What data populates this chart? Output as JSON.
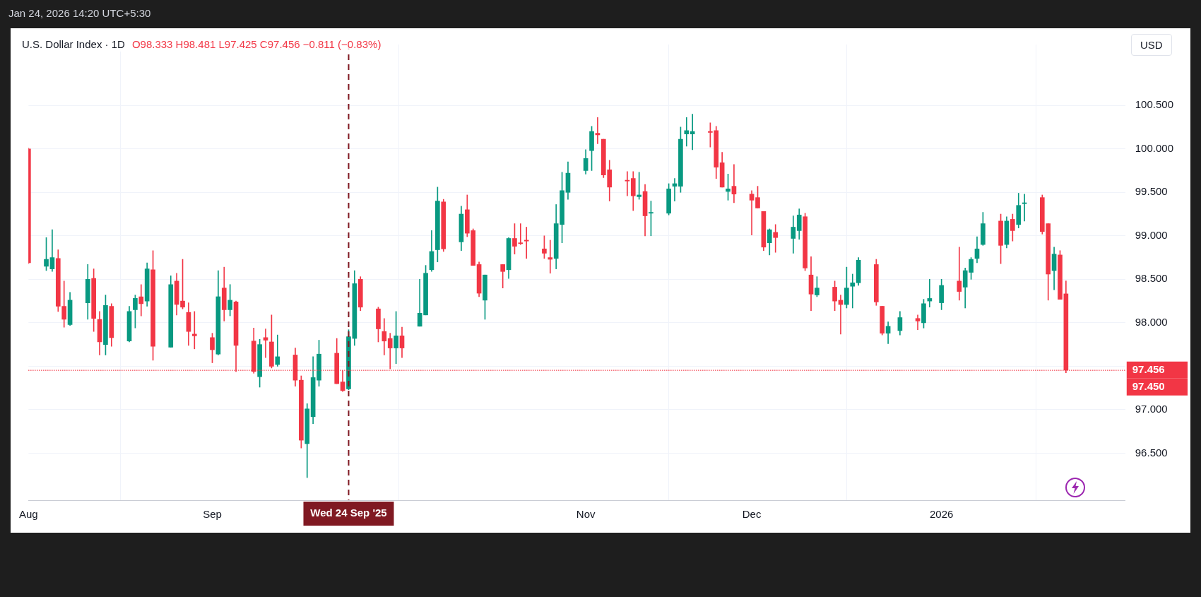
{
  "chart_data": {
    "type": "candlestick",
    "title": "U.S. Dollar Index · 1D",
    "subtitle": "O98.333 H98.481 L97.425 C97.456 −0.811 (−0.83%)",
    "annotations": [
      "Jan 24, 2026 14:20 UTC+5:30",
      "USD"
    ],
    "x": [
      "2025-08-01",
      "2025-08-04",
      "2025-08-05",
      "2025-08-06",
      "2025-08-07",
      "2025-08-08",
      "2025-08-11",
      "2025-08-12",
      "2025-08-13",
      "2025-08-14",
      "2025-08-15",
      "2025-08-18",
      "2025-08-19",
      "2025-08-20",
      "2025-08-21",
      "2025-08-22",
      "2025-08-25",
      "2025-08-26",
      "2025-08-27",
      "2025-08-28",
      "2025-08-29",
      "2025-09-01",
      "2025-09-02",
      "2025-09-03",
      "2025-09-04",
      "2025-09-05",
      "2025-09-08",
      "2025-09-09",
      "2025-09-10",
      "2025-09-11",
      "2025-09-12",
      "2025-09-15",
      "2025-09-16",
      "2025-09-17",
      "2025-09-18",
      "2025-09-19",
      "2025-09-22",
      "2025-09-23",
      "2025-09-24",
      "2025-09-25",
      "2025-09-26",
      "2025-09-29",
      "2025-09-30",
      "2025-10-01",
      "2025-10-02",
      "2025-10-03",
      "2025-10-06",
      "2025-10-07",
      "2025-10-08",
      "2025-10-09",
      "2025-10-10",
      "2025-10-13",
      "2025-10-14",
      "2025-10-15",
      "2025-10-16",
      "2025-10-17",
      "2025-10-20",
      "2025-10-21",
      "2025-10-22",
      "2025-10-23",
      "2025-10-24",
      "2025-10-27",
      "2025-10-28",
      "2025-10-29",
      "2025-10-30",
      "2025-10-31",
      "2025-11-03",
      "2025-11-04",
      "2025-11-05",
      "2025-11-06",
      "2025-11-07",
      "2025-11-10",
      "2025-11-11",
      "2025-11-12",
      "2025-11-13",
      "2025-11-14",
      "2025-11-17",
      "2025-11-18",
      "2025-11-19",
      "2025-11-20",
      "2025-11-21",
      "2025-11-24",
      "2025-11-25",
      "2025-11-26",
      "2025-11-27",
      "2025-11-28",
      "2025-12-01",
      "2025-12-02",
      "2025-12-03",
      "2025-12-04",
      "2025-12-05",
      "2025-12-08",
      "2025-12-09",
      "2025-12-10",
      "2025-12-11",
      "2025-12-12",
      "2025-12-15",
      "2025-12-16",
      "2025-12-17",
      "2025-12-18",
      "2025-12-19",
      "2025-12-22",
      "2025-12-23",
      "2025-12-24",
      "2025-12-26",
      "2025-12-29",
      "2025-12-30",
      "2025-12-31",
      "2026-01-02",
      "2026-01-05",
      "2026-01-06",
      "2026-01-07",
      "2026-01-08",
      "2026-01-09",
      "2026-01-12",
      "2026-01-13",
      "2026-01-14",
      "2026-01-15",
      "2026-01-16",
      "2026-01-19",
      "2026-01-20",
      "2026-01-21",
      "2026-01-22",
      "2026-01-23"
    ],
    "ohlc": [
      [
        100.0,
        100.01,
        98.68,
        98.69
      ],
      [
        98.65,
        98.98,
        98.6,
        98.73
      ],
      [
        98.62,
        99.07,
        98.59,
        98.75
      ],
      [
        98.74,
        98.84,
        98.13,
        98.19
      ],
      [
        98.19,
        98.48,
        97.95,
        98.04
      ],
      [
        97.98,
        98.35,
        97.97,
        98.26
      ],
      [
        98.23,
        98.67,
        98.04,
        98.5
      ],
      [
        98.51,
        98.62,
        97.9,
        98.05
      ],
      [
        98.04,
        98.13,
        97.63,
        97.78
      ],
      [
        97.75,
        98.32,
        97.63,
        98.2
      ],
      [
        98.19,
        98.22,
        97.73,
        97.83
      ],
      [
        97.79,
        98.19,
        97.78,
        98.13
      ],
      [
        98.15,
        98.32,
        97.94,
        98.28
      ],
      [
        98.3,
        98.44,
        98.08,
        98.22
      ],
      [
        98.25,
        98.69,
        98.19,
        98.62
      ],
      [
        98.61,
        98.83,
        97.57,
        97.73
      ],
      [
        97.72,
        98.54,
        97.72,
        98.44
      ],
      [
        98.48,
        98.57,
        98.09,
        98.21
      ],
      [
        98.25,
        98.73,
        98.16,
        98.18
      ],
      [
        98.12,
        98.23,
        97.74,
        97.9
      ],
      [
        97.87,
        98.13,
        97.7,
        97.85
      ],
      [
        97.83,
        97.88,
        97.54,
        97.69
      ],
      [
        97.64,
        98.6,
        97.63,
        98.3
      ],
      [
        98.4,
        98.64,
        98.02,
        98.15
      ],
      [
        98.15,
        98.44,
        98.08,
        98.26
      ],
      [
        98.24,
        98.25,
        97.44,
        97.74
      ],
      [
        97.79,
        97.94,
        97.42,
        97.44
      ],
      [
        97.38,
        97.81,
        97.26,
        97.75
      ],
      [
        97.83,
        97.93,
        97.6,
        97.8
      ],
      [
        97.78,
        98.09,
        97.48,
        97.5
      ],
      [
        97.52,
        97.86,
        97.5,
        97.61
      ],
      [
        97.63,
        97.71,
        97.27,
        97.34
      ],
      [
        97.34,
        97.39,
        96.56,
        96.65
      ],
      [
        96.61,
        97.07,
        96.22,
        97.01
      ],
      [
        96.92,
        97.61,
        96.84,
        97.37
      ],
      [
        97.34,
        97.8,
        97.27,
        97.64
      ],
      [
        97.65,
        97.82,
        97.3,
        97.3
      ],
      [
        97.32,
        97.45,
        97.21,
        97.22
      ],
      [
        97.24,
        97.92,
        97.23,
        97.84
      ],
      [
        97.82,
        98.6,
        97.74,
        98.45
      ],
      [
        98.5,
        98.53,
        98.14,
        98.18
      ],
      [
        98.16,
        98.18,
        97.78,
        97.93
      ],
      [
        97.9,
        98.05,
        97.63,
        97.79
      ],
      [
        97.82,
        97.88,
        97.47,
        97.71
      ],
      [
        97.71,
        98.13,
        97.53,
        97.85
      ],
      [
        97.85,
        97.95,
        97.6,
        97.71
      ],
      [
        97.96,
        98.5,
        97.96,
        98.11
      ],
      [
        98.09,
        98.66,
        98.09,
        98.57
      ],
      [
        98.61,
        99.06,
        98.59,
        98.82
      ],
      [
        98.84,
        99.56,
        98.7,
        99.4
      ],
      [
        99.39,
        99.42,
        98.82,
        98.85
      ],
      [
        98.93,
        99.34,
        98.83,
        99.25
      ],
      [
        99.3,
        99.47,
        98.99,
        99.03
      ],
      [
        99.06,
        99.08,
        98.66,
        98.66
      ],
      [
        98.67,
        98.7,
        98.3,
        98.34
      ],
      [
        98.26,
        98.55,
        98.04,
        98.55
      ],
      [
        98.67,
        98.67,
        98.4,
        98.59
      ],
      [
        98.61,
        98.98,
        98.51,
        98.97
      ],
      [
        98.97,
        99.14,
        98.79,
        98.88
      ],
      [
        98.92,
        99.14,
        98.9,
        98.91
      ],
      [
        98.95,
        99.1,
        98.74,
        98.94
      ],
      [
        98.85,
        99.0,
        98.74,
        98.8
      ],
      [
        98.75,
        98.95,
        98.57,
        98.73
      ],
      [
        98.74,
        99.36,
        98.62,
        99.14
      ],
      [
        99.13,
        99.73,
        98.92,
        99.52
      ],
      [
        99.5,
        99.85,
        99.42,
        99.72
      ],
      [
        99.75,
        99.99,
        99.71,
        99.89
      ],
      [
        99.98,
        100.26,
        99.75,
        100.2
      ],
      [
        100.18,
        100.36,
        100.06,
        100.16
      ],
      [
        100.11,
        100.11,
        99.67,
        99.7
      ],
      [
        99.76,
        99.87,
        99.4,
        99.56
      ],
      [
        99.64,
        99.74,
        99.46,
        99.63
      ],
      [
        99.66,
        99.74,
        99.29,
        99.46
      ],
      [
        99.45,
        99.73,
        99.42,
        99.47
      ],
      [
        99.51,
        99.59,
        99.0,
        99.23
      ],
      [
        99.26,
        99.4,
        99.0,
        99.27
      ],
      [
        99.26,
        99.6,
        99.24,
        99.54
      ],
      [
        99.57,
        99.66,
        99.4,
        99.6
      ],
      [
        99.57,
        100.25,
        99.5,
        100.11
      ],
      [
        100.17,
        100.36,
        100.03,
        100.21
      ],
      [
        100.17,
        100.4,
        99.99,
        100.2
      ],
      [
        100.2,
        100.3,
        100.02,
        100.19
      ],
      [
        100.21,
        100.26,
        99.66,
        99.79
      ],
      [
        99.84,
        99.96,
        99.56,
        99.56
      ],
      [
        99.51,
        99.71,
        99.41,
        99.54
      ],
      [
        99.57,
        99.82,
        99.38,
        99.48
      ],
      [
        99.48,
        99.52,
        99.01,
        99.41
      ],
      [
        99.44,
        99.57,
        99.32,
        99.32
      ],
      [
        99.28,
        99.28,
        98.83,
        98.87
      ],
      [
        98.92,
        99.08,
        98.78,
        99.07
      ],
      [
        99.04,
        99.13,
        98.81,
        98.98
      ],
      [
        98.97,
        99.23,
        98.8,
        99.1
      ],
      [
        99.06,
        99.31,
        98.96,
        99.24
      ],
      [
        99.22,
        99.26,
        98.6,
        98.63
      ],
      [
        98.55,
        98.76,
        98.14,
        98.33
      ],
      [
        98.32,
        98.53,
        98.3,
        98.4
      ],
      [
        98.41,
        98.48,
        98.14,
        98.25
      ],
      [
        98.26,
        98.32,
        97.87,
        98.21
      ],
      [
        98.21,
        98.64,
        98.17,
        98.4
      ],
      [
        98.42,
        98.56,
        98.17,
        98.46
      ],
      [
        98.46,
        98.75,
        98.43,
        98.72
      ],
      [
        98.67,
        98.73,
        98.2,
        98.24
      ],
      [
        98.19,
        98.19,
        97.86,
        97.88
      ],
      [
        97.88,
        98.01,
        97.76,
        97.96
      ],
      [
        97.91,
        98.13,
        97.86,
        98.06
      ],
      [
        98.05,
        98.09,
        97.92,
        98.02
      ],
      [
        98.0,
        98.27,
        97.94,
        98.22
      ],
      [
        98.25,
        98.5,
        98.18,
        98.28
      ],
      [
        98.23,
        98.5,
        98.15,
        98.43
      ],
      [
        98.48,
        98.87,
        98.26,
        98.36
      ],
      [
        98.41,
        98.63,
        98.17,
        98.6
      ],
      [
        98.58,
        98.75,
        98.5,
        98.73
      ],
      [
        98.74,
        98.99,
        98.69,
        98.85
      ],
      [
        98.9,
        99.27,
        98.89,
        99.14
      ],
      [
        99.17,
        99.25,
        98.68,
        98.89
      ],
      [
        98.9,
        99.22,
        98.86,
        99.17
      ],
      [
        99.19,
        99.25,
        98.94,
        99.06
      ],
      [
        99.13,
        99.49,
        99.09,
        99.35
      ],
      [
        99.37,
        99.48,
        99.17,
        99.38
      ],
      [
        99.44,
        99.47,
        99.02,
        99.05
      ],
      [
        99.14,
        99.14,
        98.26,
        98.56
      ],
      [
        98.6,
        98.87,
        98.38,
        98.79
      ],
      [
        98.78,
        98.83,
        98.27,
        98.27
      ],
      [
        98.333,
        98.481,
        97.425,
        97.456
      ]
    ],
    "colors": [
      "#f23645",
      "#089981",
      "#089981",
      "#f23645",
      "#f23645",
      "#089981",
      "#089981",
      "#f23645",
      "#f23645",
      "#089981",
      "#f23645",
      "#089981",
      "#089981",
      "#f23645",
      "#089981",
      "#f23645",
      "#089981",
      "#f23645",
      "#f23645",
      "#f23645",
      "#f23645",
      "#f23645",
      "#089981",
      "#f23645",
      "#089981",
      "#f23645",
      "#f23645",
      "#089981",
      "#f23645",
      "#f23645",
      "#089981",
      "#f23645",
      "#f23645",
      "#089981",
      "#089981",
      "#089981",
      "#f23645",
      "#f23645",
      "#089981",
      "#089981",
      "#f23645",
      "#f23645",
      "#f23645",
      "#f23645",
      "#089981",
      "#f23645",
      "#089981",
      "#089981",
      "#089981",
      "#089981",
      "#f23645",
      "#089981",
      "#f23645",
      "#f23645",
      "#f23645",
      "#089981",
      "#f23645",
      "#089981",
      "#f23645",
      "#f23645",
      "#f23645",
      "#f23645",
      "#f23645",
      "#089981",
      "#089981",
      "#089981",
      "#089981",
      "#089981",
      "#f23645",
      "#f23645",
      "#f23645",
      "#f23645",
      "#f23645",
      "#089981",
      "#f23645",
      "#089981",
      "#089981",
      "#089981",
      "#089981",
      "#089981",
      "#089981",
      "#f23645",
      "#f23645",
      "#f23645",
      "#089981",
      "#f23645",
      "#f23645",
      "#f23645",
      "#f23645",
      "#089981",
      "#f23645",
      "#089981",
      "#089981",
      "#f23645",
      "#f23645",
      "#089981",
      "#f23645",
      "#f23645",
      "#089981",
      "#089981",
      "#089981",
      "#f23645",
      "#f23645",
      "#089981",
      "#089981",
      "#f23645",
      "#089981",
      "#089981",
      "#089981",
      "#f23645",
      "#089981",
      "#089981",
      "#089981",
      "#089981",
      "#f23645",
      "#089981",
      "#f23645",
      "#089981",
      "#089981",
      "#f23645",
      "#f23645",
      "#089981",
      "#f23645",
      "#f23645"
    ],
    "xlim": [
      "2025-08-01",
      "2026-02-02"
    ],
    "xticks": [
      {
        "value": "2025-08-01",
        "label": "Aug"
      },
      {
        "value": "2025-09-01",
        "label": "Sep"
      },
      {
        "value": "2025-11-03",
        "label": "Nov"
      },
      {
        "value": "2025-12-01",
        "label": "Dec"
      },
      {
        "value": "2026-01-02",
        "label": "2026"
      }
    ],
    "ylim": [
      95.96,
      101.2
    ],
    "yticks": [
      {
        "value": 96.5,
        "label": "96.500"
      },
      {
        "value": 97,
        "label": "97.000"
      },
      {
        "value": 97.5,
        "label": null
      },
      {
        "value": 98,
        "label": "98.000"
      },
      {
        "value": 98.5,
        "label": "98.500"
      },
      {
        "value": 99,
        "label": "99.000"
      },
      {
        "value": 99.5,
        "label": "99.500"
      },
      {
        "value": 100,
        "label": "100.000"
      },
      {
        "value": 100.5,
        "label": "100.500"
      }
    ],
    "ref_lines": [
      {
        "axis": "x",
        "value": "2025-09-24",
        "label": "Wed 24 Sep '25",
        "color": "#801922",
        "line_style": "dashed"
      },
      {
        "axis": "y",
        "value": 97.456,
        "label": "97.456",
        "color": "#f23645",
        "line_style": "dotted"
      },
      {
        "axis": "y",
        "value": 97.45,
        "label": "97.450",
        "color": "#f23645",
        "line_style": "dotted"
      }
    ],
    "grid": true
  }
}
